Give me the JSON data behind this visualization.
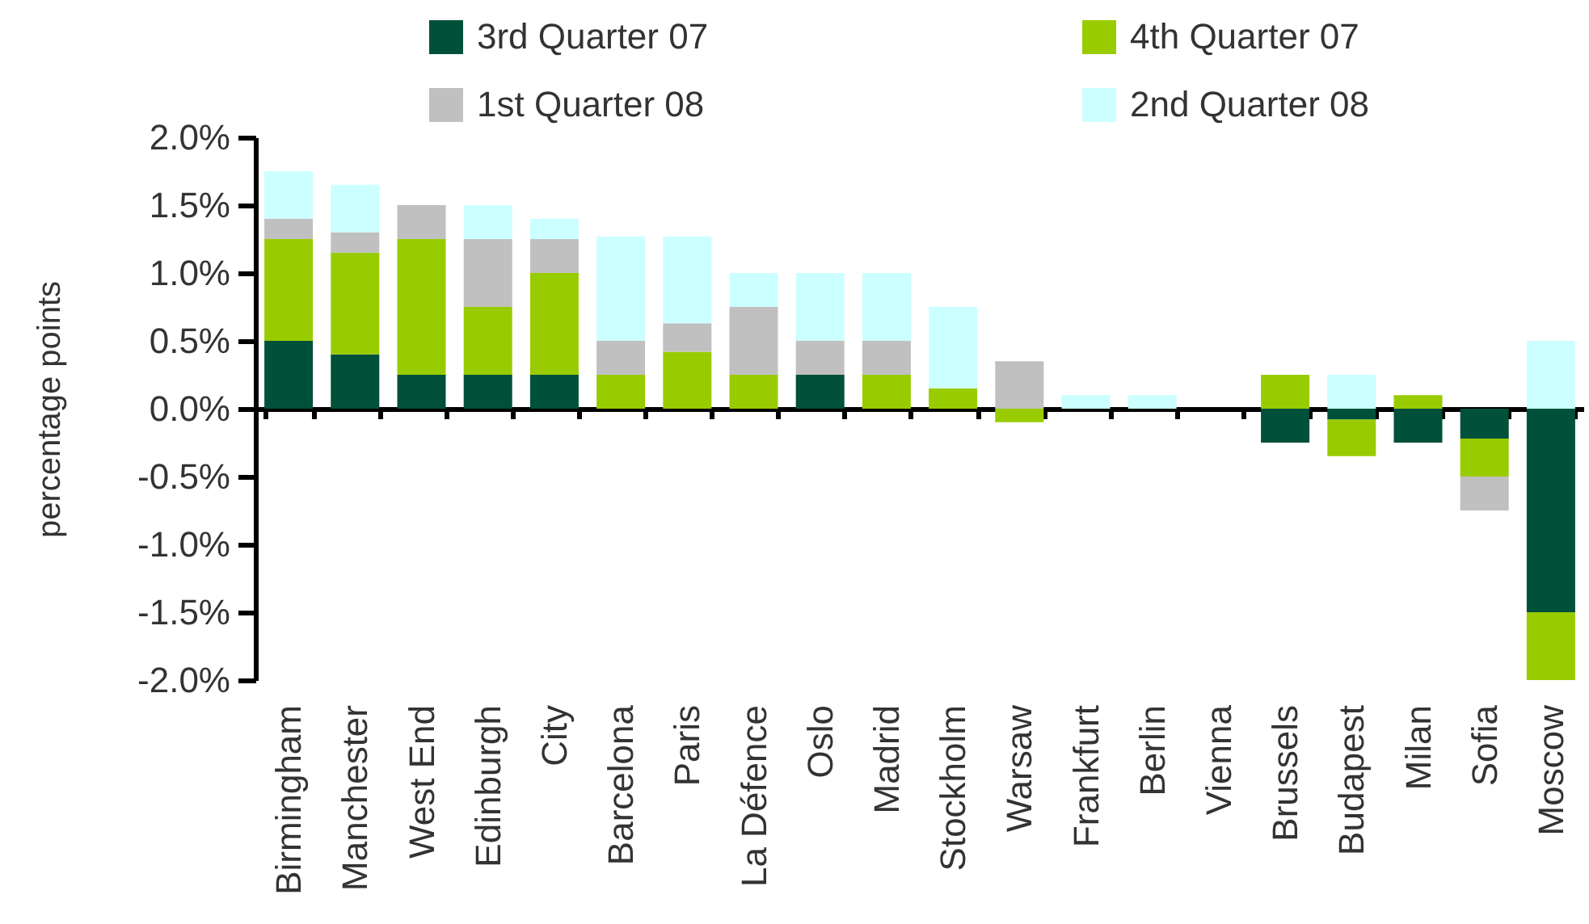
{
  "chart_data": {
    "type": "bar",
    "stacked": true,
    "ylabel": "percentage points",
    "legend": "top",
    "categories": [
      "Birmingham",
      "Manchester",
      "West End",
      "Edinburgh",
      "City",
      "Barcelona",
      "Paris",
      "La Défence",
      "Oslo",
      "Madrid",
      "Stockholm",
      "Warsaw",
      "Frankfurt",
      "Berlin",
      "Vienna",
      "Brussels",
      "Budapest",
      "Milan",
      "Sofia",
      "Moscow"
    ],
    "series": [
      {
        "name": "3rd Quarter 07",
        "color": "#00503a",
        "values": [
          0.5,
          0.4,
          0.25,
          0.25,
          0.25,
          null,
          null,
          null,
          0.25,
          null,
          null,
          null,
          null,
          null,
          null,
          -0.25,
          -0.08,
          -0.25,
          -0.22,
          -1.5
        ]
      },
      {
        "name": "4th Quarter 07",
        "color": "#99cc00",
        "values": [
          0.75,
          0.75,
          1.0,
          0.5,
          0.75,
          0.25,
          0.42,
          0.25,
          null,
          0.25,
          0.15,
          -0.1,
          null,
          null,
          null,
          0.25,
          -0.27,
          0.1,
          -0.28,
          -0.5
        ]
      },
      {
        "name": "1st Quarter 08",
        "color": "#c0c0c0",
        "values": [
          0.15,
          0.15,
          0.25,
          0.5,
          0.25,
          0.25,
          0.21,
          0.5,
          0.25,
          0.25,
          null,
          0.35,
          null,
          null,
          null,
          null,
          null,
          null,
          -0.25,
          null
        ]
      },
      {
        "name": "2nd Quarter 08",
        "color": "#ccffff",
        "values": [
          0.35,
          0.35,
          null,
          0.25,
          0.15,
          0.77,
          0.64,
          0.25,
          0.5,
          0.5,
          0.6,
          null,
          0.1,
          0.1,
          null,
          null,
          0.25,
          null,
          null,
          0.5
        ]
      }
    ],
    "ylim": [
      -2,
      2
    ],
    "yticks": [
      {
        "value": -2,
        "label": "-2.0%"
      },
      {
        "value": -1.5,
        "label": "-1.5%"
      },
      {
        "value": -1,
        "label": "-1.0%"
      },
      {
        "value": -0.5,
        "label": "-0.5%"
      },
      {
        "value": 0,
        "label": "0.0%"
      },
      {
        "value": 0.5,
        "label": "0.5%"
      },
      {
        "value": 1,
        "label": "1.0%"
      },
      {
        "value": 1.5,
        "label": "1.5%"
      },
      {
        "value": 2,
        "label": "2.0%"
      }
    ]
  }
}
